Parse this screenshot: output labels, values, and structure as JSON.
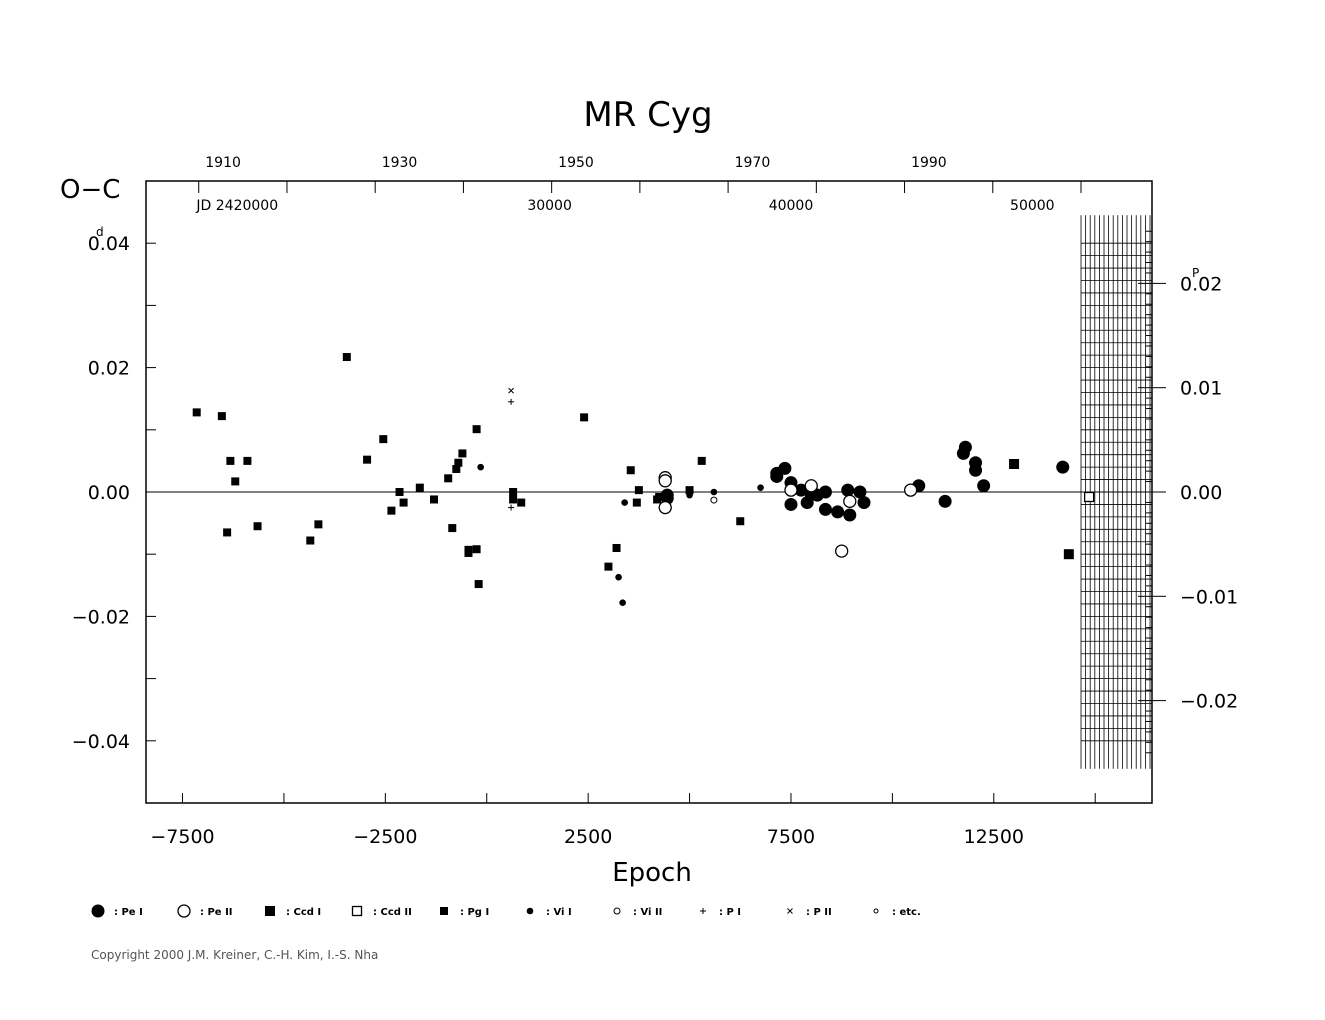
{
  "chart_data": {
    "type": "scatter",
    "title": "MR  Cyg",
    "xlabel": "Epoch",
    "ylabel": "O−C",
    "ylabel_unit_mark": "d",
    "right_unit_mark": "P",
    "x_range": [
      -8400,
      16400
    ],
    "y_range": [
      -0.05,
      0.05
    ],
    "x_ticks": [
      -7500,
      -2500,
      2500,
      7500,
      12500
    ],
    "x_tick_labels": [
      "−7500",
      "−2500",
      "2500",
      "7500",
      "12500"
    ],
    "y_ticks": [
      0.04,
      0.02,
      0.0,
      -0.02,
      -0.04
    ],
    "y_tick_labels": [
      "0.04",
      "0.02",
      "0.00",
      "−0.02",
      "−0.04"
    ],
    "right_axis": {
      "period_days": 1.677,
      "ticks": [
        0.02,
        0.01,
        0.0,
        -0.01,
        -0.02
      ],
      "tick_labels": [
        "0.02",
        "0.01",
        "0.00",
        "−0.01",
        "−0.02"
      ]
    },
    "top_year_axis": {
      "labels": [
        "1910",
        "1930",
        "1950",
        "1970",
        "1990"
      ],
      "label_epochs": [
        -6500,
        -2150,
        2200,
        6550,
        10900
      ]
    },
    "top_jd_axis": {
      "prefix_label": "JD  2420000",
      "labels": [
        "30000",
        "40000",
        "50000"
      ],
      "label_epochs": [
        -6150,
        1550,
        7500,
        13450
      ]
    },
    "grid": false,
    "zero_line": true,
    "legend": [
      {
        "symbol": "filled-circle-large",
        "label": ": Pe  I"
      },
      {
        "symbol": "open-circle-large",
        "label": ": Pe  II"
      },
      {
        "symbol": "filled-square",
        "label": ": Ccd  I"
      },
      {
        "symbol": "open-square",
        "label": ": Ccd  II"
      },
      {
        "symbol": "filled-square-small",
        "label": ": Pg  I"
      },
      {
        "symbol": "filled-circle-small",
        "label": ": Vi  I"
      },
      {
        "symbol": "open-circle-small",
        "label": ": Vi  II"
      },
      {
        "symbol": "plus",
        "label": ": P  I"
      },
      {
        "symbol": "cross",
        "label": ": P  II"
      },
      {
        "symbol": "open-circle-tiny",
        "label": ": etc."
      }
    ],
    "series": [
      {
        "symbol": "filled-square-small",
        "points": [
          [
            -7150,
            0.0128
          ],
          [
            -6530,
            0.0122
          ],
          [
            -6400,
            -0.0065
          ],
          [
            -6320,
            0.005
          ],
          [
            -6200,
            0.0017
          ],
          [
            -5900,
            0.005
          ],
          [
            -5650,
            -0.0055
          ],
          [
            -4350,
            -0.0078
          ],
          [
            -4150,
            -0.0052
          ],
          [
            -3450,
            0.0217
          ],
          [
            -2950,
            0.0052
          ],
          [
            -2550,
            0.0085
          ],
          [
            -2350,
            -0.003
          ],
          [
            -2150,
            0.0
          ],
          [
            -2050,
            -0.0017
          ],
          [
            -1650,
            0.0007
          ],
          [
            -1300,
            -0.0012
          ],
          [
            -950,
            0.0022
          ],
          [
            -850,
            -0.0058
          ],
          [
            -750,
            0.0037
          ],
          [
            -700,
            0.0047
          ],
          [
            -600,
            0.0062
          ],
          [
            -450,
            -0.0098
          ],
          [
            -450,
            -0.0093
          ],
          [
            -250,
            -0.0092
          ],
          [
            -250,
            0.0101
          ],
          [
            -200,
            -0.0148
          ],
          [
            650,
            0.0
          ],
          [
            650,
            -0.0012
          ],
          [
            850,
            -0.0017
          ],
          [
            2400,
            0.012
          ],
          [
            3000,
            -0.012
          ],
          [
            3200,
            -0.009
          ],
          [
            3550,
            0.0035
          ],
          [
            3700,
            -0.0017
          ],
          [
            3750,
            0.0003
          ],
          [
            4200,
            -0.0012
          ],
          [
            4250,
            -0.0008
          ],
          [
            5000,
            0.0003
          ],
          [
            5300,
            0.005
          ],
          [
            6250,
            -0.0047
          ]
        ]
      },
      {
        "symbol": "filled-circle-small",
        "points": [
          [
            -150,
            0.004
          ],
          [
            3250,
            -0.0137
          ],
          [
            3350,
            -0.0178
          ],
          [
            3400,
            -0.0017
          ],
          [
            4450,
            -0.0008
          ],
          [
            5000,
            -0.0005
          ],
          [
            5600,
            0.0
          ],
          [
            6750,
            0.0007
          ]
        ]
      },
      {
        "symbol": "filled-circle-large",
        "points": [
          [
            4450,
            -0.001
          ],
          [
            4450,
            -0.0005
          ],
          [
            7150,
            0.003
          ],
          [
            7150,
            0.0025
          ],
          [
            7350,
            0.0038
          ],
          [
            7500,
            0.0015
          ],
          [
            7500,
            -0.002
          ],
          [
            7750,
            0.0003
          ],
          [
            7900,
            -0.0017
          ],
          [
            8000,
            -0.0003
          ],
          [
            8150,
            -0.0005
          ],
          [
            8350,
            0.0
          ],
          [
            8350,
            -0.0028
          ],
          [
            8650,
            -0.0032
          ],
          [
            8900,
            0.0003
          ],
          [
            8950,
            -0.0037
          ],
          [
            9200,
            0.0
          ],
          [
            9300,
            -0.0017
          ],
          [
            10650,
            0.001
          ],
          [
            11300,
            -0.0015
          ],
          [
            11750,
            0.0062
          ],
          [
            11800,
            0.0072
          ],
          [
            12050,
            0.0047
          ],
          [
            12050,
            0.0035
          ],
          [
            12250,
            0.001
          ],
          [
            14200,
            0.004
          ]
        ]
      },
      {
        "symbol": "open-circle-large",
        "points": [
          [
            4400,
            0.0023
          ],
          [
            4400,
            0.0018
          ],
          [
            4400,
            -0.0025
          ],
          [
            7500,
            0.0003
          ],
          [
            8000,
            0.001
          ],
          [
            8750,
            -0.0095
          ],
          [
            8950,
            -0.0015
          ],
          [
            10450,
            0.0003
          ]
        ]
      },
      {
        "symbol": "open-circle-small",
        "points": [
          [
            5600,
            -0.0013
          ]
        ]
      },
      {
        "symbol": "filled-square",
        "points": [
          [
            13000,
            0.0045
          ],
          [
            14350,
            -0.01
          ]
        ]
      },
      {
        "symbol": "open-square",
        "points": [
          [
            14850,
            -0.0008
          ]
        ]
      },
      {
        "symbol": "plus",
        "points": [
          [
            600,
            0.0145
          ],
          [
            600,
            -0.0025
          ]
        ]
      },
      {
        "symbol": "cross",
        "points": [
          [
            600,
            0.0163
          ]
        ]
      }
    ]
  },
  "copyright": "Copyright 2000 J.M. Kreiner, C.-H. Kim, I.-S. Nha"
}
